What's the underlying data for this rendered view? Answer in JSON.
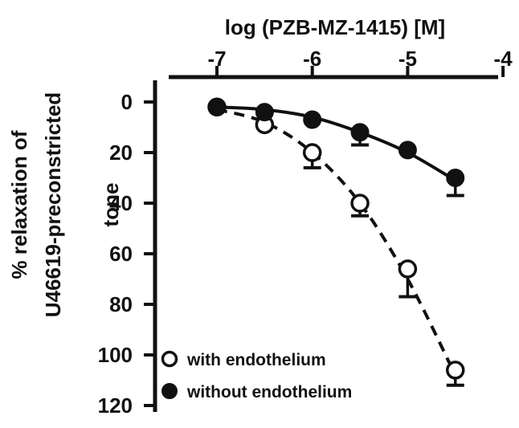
{
  "chart_data": {
    "type": "scatter",
    "title": "",
    "xlabel": "log (PZB-MZ-1415) [M]",
    "ylabel_line1": "% relaxation of",
    "ylabel_line2": "U46619-preconstricted",
    "ylabel_line3": "tone",
    "x_axis_position": "top",
    "y_axis_inverted": true,
    "xlim": [
      -7.5,
      -4
    ],
    "ylim": [
      0,
      120
    ],
    "x_ticks": [
      -7,
      -6,
      -5,
      -4
    ],
    "x_tick_labels": [
      "-7",
      "-6",
      "-5",
      "-4"
    ],
    "y_ticks": [
      0,
      20,
      40,
      60,
      80,
      100,
      120
    ],
    "y_tick_labels": [
      "0",
      "20",
      "40",
      "60",
      "80",
      "100",
      "120"
    ],
    "grid": false,
    "legend_position": "bottom-left",
    "series": [
      {
        "name": "with endothelium",
        "marker": "open-circle",
        "line_style": "dashed",
        "color": "#111111",
        "x": [
          -7,
          -6.5,
          -6,
          -5.5,
          -5,
          -4.5
        ],
        "y": [
          2,
          9,
          20,
          40,
          66,
          106
        ],
        "err": [
          0,
          0,
          6,
          5,
          11,
          6
        ],
        "fit_y": [
          3,
          8,
          20,
          40,
          70,
          108
        ]
      },
      {
        "name": "without endothelium",
        "marker": "filled-circle",
        "line_style": "solid",
        "color": "#111111",
        "x": [
          -7,
          -6.5,
          -6,
          -5.5,
          -5,
          -4.5
        ],
        "y": [
          2,
          4,
          7,
          12,
          19,
          30
        ],
        "err": [
          0,
          0,
          0,
          5,
          0,
          7
        ],
        "fit_y": [
          2,
          3,
          6,
          12,
          20,
          31
        ]
      }
    ]
  }
}
